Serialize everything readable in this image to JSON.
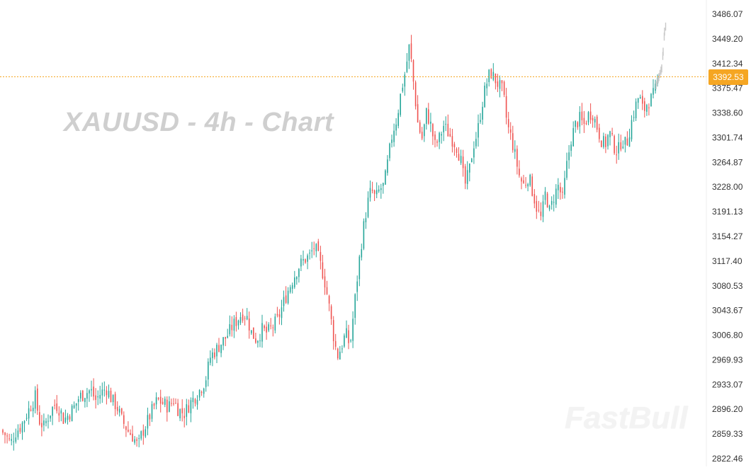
{
  "chart_title": "XAUUSD - 4h - Chart",
  "brand": "FastBull",
  "current_price": "3392.53",
  "colors": {
    "up": "#26a69a",
    "down": "#ef5350",
    "projection": "#c8c8c8",
    "price_line": "#f5a623",
    "axis_text": "#333333"
  },
  "chart_data": {
    "type": "candlestick",
    "title": "XAUUSD - 4h - Chart",
    "ylim": [
      2822.46,
      3486.07
    ],
    "y_ticks": [
      "3486.07",
      "3449.20",
      "3412.34",
      "3375.47",
      "3338.60",
      "3301.74",
      "3264.87",
      "3228.00",
      "3191.13",
      "3154.27",
      "3117.40",
      "3080.53",
      "3043.67",
      "3006.80",
      "2969.93",
      "2933.07",
      "2896.20",
      "2859.33",
      "2822.46"
    ],
    "current_price": 3392.53,
    "grid": false,
    "close_path": [
      [
        0,
        2865
      ],
      [
        8,
        2858
      ],
      [
        15,
        2845
      ],
      [
        22,
        2862
      ],
      [
        30,
        2872
      ],
      [
        38,
        2890
      ],
      [
        45,
        2905
      ],
      [
        50,
        2915
      ],
      [
        55,
        2880
      ],
      [
        62,
        2870
      ],
      [
        70,
        2890
      ],
      [
        78,
        2905
      ],
      [
        85,
        2895
      ],
      [
        90,
        2880
      ],
      [
        98,
        2890
      ],
      [
        105,
        2900
      ],
      [
        112,
        2915
      ],
      [
        120,
        2920
      ],
      [
        128,
        2925
      ],
      [
        135,
        2910
      ],
      [
        142,
        2920
      ],
      [
        150,
        2928
      ],
      [
        158,
        2910
      ],
      [
        165,
        2900
      ],
      [
        172,
        2880
      ],
      [
        180,
        2865
      ],
      [
        188,
        2855
      ],
      [
        195,
        2840
      ],
      [
        200,
        2860
      ],
      [
        207,
        2875
      ],
      [
        215,
        2895
      ],
      [
        222,
        2910
      ],
      [
        230,
        2905
      ],
      [
        238,
        2900
      ],
      [
        245,
        2910
      ],
      [
        252,
        2895
      ],
      [
        260,
        2890
      ],
      [
        268,
        2905
      ],
      [
        275,
        2915
      ],
      [
        282,
        2925
      ],
      [
        290,
        2940
      ],
      [
        297,
        2975
      ],
      [
        305,
        2985
      ],
      [
        312,
        2995
      ],
      [
        320,
        3005
      ],
      [
        328,
        3020
      ],
      [
        335,
        3030
      ],
      [
        342,
        3040
      ],
      [
        348,
        3035
      ],
      [
        355,
        3010
      ],
      [
        362,
        3000
      ],
      [
        370,
        3015
      ],
      [
        377,
        3010
      ],
      [
        385,
        3020
      ],
      [
        392,
        3030
      ],
      [
        400,
        3055
      ],
      [
        407,
        3075
      ],
      [
        415,
        3095
      ],
      [
        422,
        3110
      ],
      [
        430,
        3120
      ],
      [
        437,
        3125
      ],
      [
        444,
        3140
      ],
      [
        450,
        3120
      ],
      [
        457,
        3095
      ],
      [
        463,
        3060
      ],
      [
        470,
        3010
      ],
      [
        476,
        2975
      ],
      [
        482,
        2990
      ],
      [
        488,
        3010
      ],
      [
        494,
        2990
      ],
      [
        500,
        3050
      ],
      [
        506,
        3110
      ],
      [
        512,
        3160
      ],
      [
        518,
        3200
      ],
      [
        524,
        3225
      ],
      [
        530,
        3210
      ],
      [
        536,
        3225
      ],
      [
        542,
        3230
      ],
      [
        548,
        3270
      ],
      [
        554,
        3310
      ],
      [
        560,
        3330
      ],
      [
        566,
        3370
      ],
      [
        572,
        3400
      ],
      [
        578,
        3440
      ],
      [
        584,
        3380
      ],
      [
        590,
        3320
      ],
      [
        596,
        3300
      ],
      [
        602,
        3340
      ],
      [
        608,
        3320
      ],
      [
        614,
        3290
      ],
      [
        620,
        3300
      ],
      [
        626,
        3320
      ],
      [
        632,
        3310
      ],
      [
        638,
        3300
      ],
      [
        644,
        3290
      ],
      [
        650,
        3270
      ],
      [
        656,
        3230
      ],
      [
        662,
        3250
      ],
      [
        668,
        3290
      ],
      [
        674,
        3310
      ],
      [
        680,
        3350
      ],
      [
        686,
        3380
      ],
      [
        692,
        3400
      ],
      [
        698,
        3390
      ],
      [
        704,
        3380
      ],
      [
        710,
        3370
      ],
      [
        716,
        3320
      ],
      [
        722,
        3300
      ],
      [
        728,
        3270
      ],
      [
        734,
        3240
      ],
      [
        740,
        3230
      ],
      [
        746,
        3245
      ],
      [
        752,
        3220
      ],
      [
        758,
        3195
      ],
      [
        764,
        3180
      ],
      [
        770,
        3220
      ],
      [
        776,
        3190
      ],
      [
        782,
        3215
      ],
      [
        788,
        3230
      ],
      [
        794,
        3210
      ],
      [
        800,
        3260
      ],
      [
        806,
        3300
      ],
      [
        812,
        3320
      ],
      [
        818,
        3330
      ],
      [
        824,
        3320
      ],
      [
        830,
        3335
      ],
      [
        836,
        3340
      ],
      [
        842,
        3320
      ],
      [
        848,
        3300
      ],
      [
        854,
        3290
      ],
      [
        860,
        3310
      ],
      [
        866,
        3290
      ],
      [
        872,
        3280
      ],
      [
        878,
        3300
      ],
      [
        884,
        3290
      ],
      [
        890,
        3320
      ],
      [
        896,
        3345
      ],
      [
        902,
        3365
      ],
      [
        908,
        3340
      ],
      [
        914,
        3355
      ],
      [
        920,
        3360
      ],
      [
        926,
        3375
      ],
      [
        932,
        3390
      ]
    ],
    "projection_path": [
      [
        926,
        3380
      ],
      [
        930,
        3392
      ],
      [
        934,
        3405
      ],
      [
        936,
        3430
      ],
      [
        938,
        3460
      ],
      [
        940,
        3470
      ]
    ]
  }
}
